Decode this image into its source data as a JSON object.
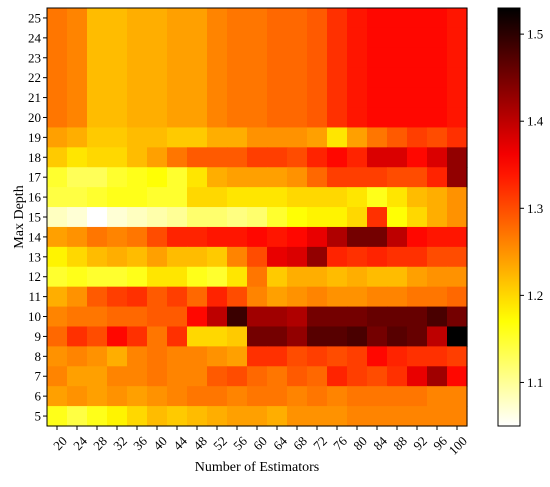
{
  "chart_data": {
    "type": "heatmap",
    "title": "",
    "xlabel": "Number of Estimators",
    "ylabel": "Max Depth",
    "x_tick_labels": [
      "20",
      "24",
      "28",
      "32",
      "36",
      "40",
      "44",
      "48",
      "52",
      "56",
      "60",
      "64",
      "68",
      "72",
      "76",
      "80",
      "84",
      "88",
      "92",
      "96",
      "100"
    ],
    "y_tick_labels": [
      "5",
      "6",
      "7",
      "8",
      "9",
      "10",
      "11",
      "12",
      "13",
      "14",
      "15",
      "16",
      "17",
      "18",
      "19",
      "20",
      "21",
      "22",
      "23",
      "24",
      "25"
    ],
    "x_label_rotation": "diagonal",
    "colormap": "hot_r",
    "colorbar": {
      "range": [
        1.05,
        1.53
      ],
      "ticks": [
        1.1,
        1.2,
        1.3,
        1.4,
        1.5
      ],
      "tick_labels": [
        "1.1",
        "1.2",
        "1.3",
        "1.4",
        "1.5"
      ]
    },
    "rows_note": "values listed from Max Depth 25 (top row) down to 5 (bottom row)",
    "values": [
      [
        1.27,
        1.26,
        1.22,
        1.22,
        1.23,
        1.23,
        1.24,
        1.24,
        1.26,
        1.27,
        1.27,
        1.28,
        1.28,
        1.29,
        1.32,
        1.34,
        1.35,
        1.35,
        1.35,
        1.35,
        1.34
      ],
      [
        1.27,
        1.26,
        1.22,
        1.22,
        1.23,
        1.23,
        1.24,
        1.24,
        1.26,
        1.27,
        1.27,
        1.28,
        1.28,
        1.29,
        1.32,
        1.34,
        1.35,
        1.35,
        1.35,
        1.35,
        1.34
      ],
      [
        1.27,
        1.26,
        1.22,
        1.22,
        1.23,
        1.23,
        1.24,
        1.24,
        1.26,
        1.27,
        1.27,
        1.28,
        1.28,
        1.29,
        1.32,
        1.34,
        1.35,
        1.35,
        1.35,
        1.35,
        1.34
      ],
      [
        1.27,
        1.26,
        1.22,
        1.22,
        1.23,
        1.23,
        1.24,
        1.24,
        1.26,
        1.27,
        1.27,
        1.28,
        1.28,
        1.29,
        1.32,
        1.34,
        1.35,
        1.35,
        1.35,
        1.35,
        1.34
      ],
      [
        1.27,
        1.26,
        1.22,
        1.22,
        1.23,
        1.23,
        1.24,
        1.24,
        1.26,
        1.27,
        1.27,
        1.28,
        1.28,
        1.29,
        1.32,
        1.34,
        1.35,
        1.35,
        1.35,
        1.35,
        1.34
      ],
      [
        1.27,
        1.26,
        1.22,
        1.22,
        1.23,
        1.23,
        1.24,
        1.24,
        1.26,
        1.27,
        1.27,
        1.28,
        1.28,
        1.29,
        1.32,
        1.34,
        1.35,
        1.35,
        1.35,
        1.35,
        1.34
      ],
      [
        1.24,
        1.23,
        1.21,
        1.21,
        1.22,
        1.22,
        1.21,
        1.21,
        1.23,
        1.23,
        1.25,
        1.25,
        1.25,
        1.24,
        1.19,
        1.24,
        1.27,
        1.29,
        1.31,
        1.3,
        1.32
      ],
      [
        1.21,
        1.19,
        1.2,
        1.2,
        1.22,
        1.24,
        1.27,
        1.29,
        1.29,
        1.29,
        1.31,
        1.31,
        1.3,
        1.33,
        1.35,
        1.33,
        1.38,
        1.38,
        1.35,
        1.38,
        1.43
      ],
      [
        1.15,
        1.13,
        1.13,
        1.15,
        1.16,
        1.17,
        1.15,
        1.19,
        1.23,
        1.24,
        1.24,
        1.24,
        1.25,
        1.28,
        1.31,
        1.31,
        1.31,
        1.3,
        1.3,
        1.33,
        1.43
      ],
      [
        1.14,
        1.14,
        1.15,
        1.16,
        1.16,
        1.15,
        1.15,
        1.2,
        1.2,
        1.19,
        1.19,
        1.19,
        1.2,
        1.2,
        1.2,
        1.19,
        1.16,
        1.19,
        1.22,
        1.23,
        1.25
      ],
      [
        1.08,
        1.07,
        1.05,
        1.07,
        1.08,
        1.09,
        1.1,
        1.12,
        1.12,
        1.11,
        1.12,
        1.15,
        1.17,
        1.18,
        1.18,
        1.2,
        1.32,
        1.17,
        1.2,
        1.23,
        1.25
      ],
      [
        1.24,
        1.25,
        1.27,
        1.26,
        1.27,
        1.3,
        1.33,
        1.33,
        1.34,
        1.34,
        1.35,
        1.34,
        1.35,
        1.37,
        1.41,
        1.45,
        1.45,
        1.4,
        1.35,
        1.34,
        1.34
      ],
      [
        1.18,
        1.2,
        1.22,
        1.23,
        1.22,
        1.24,
        1.22,
        1.22,
        1.21,
        1.26,
        1.3,
        1.37,
        1.38,
        1.43,
        1.33,
        1.32,
        1.33,
        1.32,
        1.32,
        1.3,
        1.3
      ],
      [
        1.15,
        1.16,
        1.15,
        1.15,
        1.16,
        1.19,
        1.19,
        1.16,
        1.15,
        1.19,
        1.27,
        1.21,
        1.23,
        1.23,
        1.22,
        1.23,
        1.22,
        1.22,
        1.24,
        1.25,
        1.25
      ],
      [
        1.23,
        1.25,
        1.29,
        1.31,
        1.32,
        1.29,
        1.31,
        1.28,
        1.33,
        1.3,
        1.26,
        1.24,
        1.25,
        1.26,
        1.25,
        1.25,
        1.26,
        1.26,
        1.27,
        1.27,
        1.28
      ],
      [
        1.26,
        1.27,
        1.27,
        1.28,
        1.28,
        1.29,
        1.29,
        1.35,
        1.4,
        1.49,
        1.42,
        1.42,
        1.41,
        1.45,
        1.45,
        1.45,
        1.46,
        1.46,
        1.46,
        1.48,
        1.45
      ],
      [
        1.28,
        1.32,
        1.3,
        1.35,
        1.32,
        1.27,
        1.32,
        1.2,
        1.2,
        1.21,
        1.45,
        1.45,
        1.43,
        1.47,
        1.47,
        1.48,
        1.45,
        1.47,
        1.46,
        1.4,
        1.53
      ],
      [
        1.25,
        1.26,
        1.25,
        1.23,
        1.26,
        1.27,
        1.26,
        1.26,
        1.25,
        1.24,
        1.32,
        1.32,
        1.3,
        1.31,
        1.3,
        1.31,
        1.35,
        1.33,
        1.32,
        1.32,
        1.31
      ],
      [
        1.26,
        1.24,
        1.24,
        1.26,
        1.26,
        1.27,
        1.26,
        1.26,
        1.29,
        1.3,
        1.28,
        1.27,
        1.29,
        1.28,
        1.33,
        1.31,
        1.3,
        1.32,
        1.37,
        1.42,
        1.35
      ],
      [
        1.24,
        1.25,
        1.24,
        1.25,
        1.24,
        1.25,
        1.26,
        1.27,
        1.27,
        1.26,
        1.27,
        1.27,
        1.26,
        1.27,
        1.26,
        1.27,
        1.27,
        1.27,
        1.27,
        1.26,
        1.26
      ],
      [
        1.16,
        1.14,
        1.16,
        1.18,
        1.2,
        1.22,
        1.21,
        1.22,
        1.23,
        1.24,
        1.24,
        1.23,
        1.25,
        1.25,
        1.25,
        1.26,
        1.26,
        1.26,
        1.26,
        1.26,
        1.26
      ]
    ]
  }
}
